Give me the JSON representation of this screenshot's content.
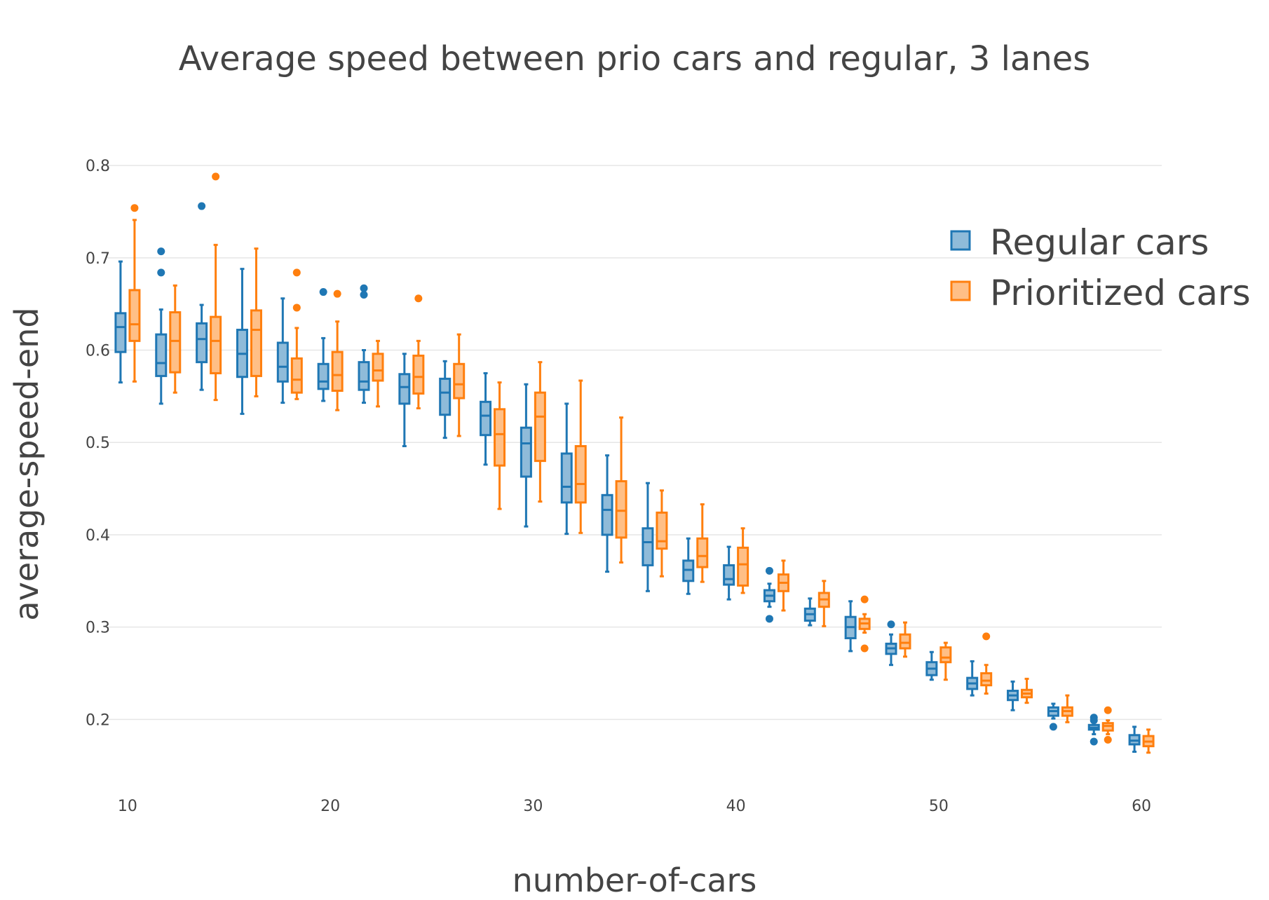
{
  "chart_data": {
    "type": "box",
    "title": "Average speed between prio cars and regular, 3 lanes",
    "xlabel": "number-of-cars",
    "ylabel": "average-speed-end",
    "xlim": [
      9,
      61
    ],
    "ylim": [
      0.135,
      0.835
    ],
    "x_ticks": [
      10,
      20,
      30,
      40,
      50,
      60
    ],
    "y_ticks": [
      0.2,
      0.3,
      0.4,
      0.5,
      0.6,
      0.7,
      0.8
    ],
    "grid": "horizontal",
    "legend_position": "top-right",
    "categories": [
      10,
      12,
      14,
      16,
      18,
      20,
      22,
      24,
      26,
      28,
      30,
      32,
      34,
      36,
      38,
      40,
      42,
      44,
      46,
      48,
      50,
      52,
      54,
      56,
      58,
      60
    ],
    "series": [
      {
        "name": "Regular cars",
        "color": "#1f77b4",
        "fill": "#8fbbd9",
        "boxes": [
          {
            "x": 10,
            "min": 0.565,
            "q1": 0.598,
            "median": 0.625,
            "q3": 0.64,
            "max": 0.696,
            "outliers": []
          },
          {
            "x": 12,
            "min": 0.542,
            "q1": 0.572,
            "median": 0.586,
            "q3": 0.617,
            "max": 0.644,
            "outliers": [
              0.707,
              0.684
            ]
          },
          {
            "x": 14,
            "min": 0.557,
            "q1": 0.587,
            "median": 0.612,
            "q3": 0.629,
            "max": 0.649,
            "outliers": [
              0.756
            ]
          },
          {
            "x": 16,
            "min": 0.531,
            "q1": 0.571,
            "median": 0.596,
            "q3": 0.622,
            "max": 0.688,
            "outliers": []
          },
          {
            "x": 18,
            "min": 0.543,
            "q1": 0.566,
            "median": 0.582,
            "q3": 0.608,
            "max": 0.656,
            "outliers": []
          },
          {
            "x": 20,
            "min": 0.545,
            "q1": 0.558,
            "median": 0.566,
            "q3": 0.585,
            "max": 0.613,
            "outliers": [
              0.663
            ]
          },
          {
            "x": 22,
            "min": 0.543,
            "q1": 0.557,
            "median": 0.566,
            "q3": 0.587,
            "max": 0.6,
            "outliers": [
              0.667,
              0.66
            ]
          },
          {
            "x": 24,
            "min": 0.496,
            "q1": 0.542,
            "median": 0.56,
            "q3": 0.574,
            "max": 0.596,
            "outliers": []
          },
          {
            "x": 26,
            "min": 0.505,
            "q1": 0.53,
            "median": 0.554,
            "q3": 0.569,
            "max": 0.588,
            "outliers": []
          },
          {
            "x": 28,
            "min": 0.476,
            "q1": 0.508,
            "median": 0.529,
            "q3": 0.544,
            "max": 0.575,
            "outliers": []
          },
          {
            "x": 30,
            "min": 0.409,
            "q1": 0.463,
            "median": 0.499,
            "q3": 0.516,
            "max": 0.563,
            "outliers": []
          },
          {
            "x": 32,
            "min": 0.401,
            "q1": 0.435,
            "median": 0.452,
            "q3": 0.488,
            "max": 0.542,
            "outliers": []
          },
          {
            "x": 34,
            "min": 0.36,
            "q1": 0.4,
            "median": 0.427,
            "q3": 0.443,
            "max": 0.486,
            "outliers": []
          },
          {
            "x": 36,
            "min": 0.339,
            "q1": 0.367,
            "median": 0.392,
            "q3": 0.407,
            "max": 0.456,
            "outliers": []
          },
          {
            "x": 38,
            "min": 0.336,
            "q1": 0.35,
            "median": 0.362,
            "q3": 0.372,
            "max": 0.396,
            "outliers": []
          },
          {
            "x": 40,
            "min": 0.33,
            "q1": 0.346,
            "median": 0.352,
            "q3": 0.367,
            "max": 0.387,
            "outliers": []
          },
          {
            "x": 42,
            "min": 0.322,
            "q1": 0.328,
            "median": 0.334,
            "q3": 0.34,
            "max": 0.347,
            "outliers": [
              0.361,
              0.309
            ]
          },
          {
            "x": 44,
            "min": 0.302,
            "q1": 0.307,
            "median": 0.314,
            "q3": 0.32,
            "max": 0.331,
            "outliers": []
          },
          {
            "x": 46,
            "min": 0.274,
            "q1": 0.288,
            "median": 0.3,
            "q3": 0.311,
            "max": 0.328,
            "outliers": []
          },
          {
            "x": 48,
            "min": 0.259,
            "q1": 0.271,
            "median": 0.277,
            "q3": 0.282,
            "max": 0.292,
            "outliers": [
              0.303
            ]
          },
          {
            "x": 50,
            "min": 0.243,
            "q1": 0.248,
            "median": 0.255,
            "q3": 0.262,
            "max": 0.273,
            "outliers": []
          },
          {
            "x": 52,
            "min": 0.226,
            "q1": 0.233,
            "median": 0.239,
            "q3": 0.245,
            "max": 0.263,
            "outliers": []
          },
          {
            "x": 54,
            "min": 0.21,
            "q1": 0.221,
            "median": 0.226,
            "q3": 0.231,
            "max": 0.241,
            "outliers": []
          },
          {
            "x": 56,
            "min": 0.201,
            "q1": 0.204,
            "median": 0.209,
            "q3": 0.213,
            "max": 0.217,
            "outliers": [
              0.192
            ]
          },
          {
            "x": 58,
            "min": 0.184,
            "q1": 0.189,
            "median": 0.191,
            "q3": 0.194,
            "max": 0.197,
            "outliers": [
              0.202,
              0.199,
              0.176
            ]
          },
          {
            "x": 60,
            "min": 0.165,
            "q1": 0.173,
            "median": 0.177,
            "q3": 0.183,
            "max": 0.192,
            "outliers": []
          }
        ]
      },
      {
        "name": "Prioritized cars",
        "color": "#ff7f0e",
        "fill": "#ffbf86",
        "boxes": [
          {
            "x": 10,
            "min": 0.566,
            "q1": 0.61,
            "median": 0.628,
            "q3": 0.665,
            "max": 0.741,
            "outliers": [
              0.754
            ]
          },
          {
            "x": 12,
            "min": 0.554,
            "q1": 0.576,
            "median": 0.61,
            "q3": 0.641,
            "max": 0.67,
            "outliers": []
          },
          {
            "x": 14,
            "min": 0.546,
            "q1": 0.575,
            "median": 0.61,
            "q3": 0.636,
            "max": 0.714,
            "outliers": [
              0.788
            ]
          },
          {
            "x": 16,
            "min": 0.55,
            "q1": 0.572,
            "median": 0.622,
            "q3": 0.643,
            "max": 0.71,
            "outliers": []
          },
          {
            "x": 18,
            "min": 0.547,
            "q1": 0.554,
            "median": 0.568,
            "q3": 0.591,
            "max": 0.624,
            "outliers": [
              0.684,
              0.646
            ]
          },
          {
            "x": 20,
            "min": 0.535,
            "q1": 0.556,
            "median": 0.573,
            "q3": 0.598,
            "max": 0.631,
            "outliers": [
              0.661
            ]
          },
          {
            "x": 22,
            "min": 0.539,
            "q1": 0.567,
            "median": 0.578,
            "q3": 0.596,
            "max": 0.61,
            "outliers": []
          },
          {
            "x": 24,
            "min": 0.537,
            "q1": 0.553,
            "median": 0.571,
            "q3": 0.594,
            "max": 0.61,
            "outliers": [
              0.656
            ]
          },
          {
            "x": 26,
            "min": 0.507,
            "q1": 0.548,
            "median": 0.563,
            "q3": 0.585,
            "max": 0.617,
            "outliers": []
          },
          {
            "x": 28,
            "min": 0.428,
            "q1": 0.475,
            "median": 0.509,
            "q3": 0.536,
            "max": 0.565,
            "outliers": []
          },
          {
            "x": 30,
            "min": 0.436,
            "q1": 0.48,
            "median": 0.528,
            "q3": 0.554,
            "max": 0.587,
            "outliers": []
          },
          {
            "x": 32,
            "min": 0.402,
            "q1": 0.435,
            "median": 0.455,
            "q3": 0.496,
            "max": 0.567,
            "outliers": []
          },
          {
            "x": 34,
            "min": 0.37,
            "q1": 0.397,
            "median": 0.426,
            "q3": 0.458,
            "max": 0.527,
            "outliers": []
          },
          {
            "x": 36,
            "min": 0.355,
            "q1": 0.385,
            "median": 0.393,
            "q3": 0.424,
            "max": 0.448,
            "outliers": []
          },
          {
            "x": 38,
            "min": 0.349,
            "q1": 0.365,
            "median": 0.377,
            "q3": 0.396,
            "max": 0.433,
            "outliers": []
          },
          {
            "x": 40,
            "min": 0.337,
            "q1": 0.345,
            "median": 0.368,
            "q3": 0.386,
            "max": 0.407,
            "outliers": []
          },
          {
            "x": 42,
            "min": 0.318,
            "q1": 0.339,
            "median": 0.348,
            "q3": 0.357,
            "max": 0.372,
            "outliers": []
          },
          {
            "x": 44,
            "min": 0.301,
            "q1": 0.322,
            "median": 0.33,
            "q3": 0.337,
            "max": 0.35,
            "outliers": []
          },
          {
            "x": 46,
            "min": 0.294,
            "q1": 0.298,
            "median": 0.304,
            "q3": 0.309,
            "max": 0.314,
            "outliers": [
              0.33,
              0.277
            ]
          },
          {
            "x": 48,
            "min": 0.268,
            "q1": 0.277,
            "median": 0.283,
            "q3": 0.292,
            "max": 0.305,
            "outliers": []
          },
          {
            "x": 50,
            "min": 0.243,
            "q1": 0.262,
            "median": 0.267,
            "q3": 0.278,
            "max": 0.283,
            "outliers": []
          },
          {
            "x": 52,
            "min": 0.228,
            "q1": 0.237,
            "median": 0.242,
            "q3": 0.25,
            "max": 0.259,
            "outliers": [
              0.29
            ]
          },
          {
            "x": 54,
            "min": 0.218,
            "q1": 0.224,
            "median": 0.228,
            "q3": 0.232,
            "max": 0.244,
            "outliers": []
          },
          {
            "x": 56,
            "min": 0.197,
            "q1": 0.204,
            "median": 0.209,
            "q3": 0.213,
            "max": 0.226,
            "outliers": []
          },
          {
            "x": 58,
            "min": 0.184,
            "q1": 0.188,
            "median": 0.193,
            "q3": 0.196,
            "max": 0.199,
            "outliers": [
              0.21,
              0.178
            ]
          },
          {
            "x": 60,
            "min": 0.164,
            "q1": 0.171,
            "median": 0.176,
            "q3": 0.182,
            "max": 0.189,
            "outliers": []
          }
        ]
      }
    ]
  }
}
